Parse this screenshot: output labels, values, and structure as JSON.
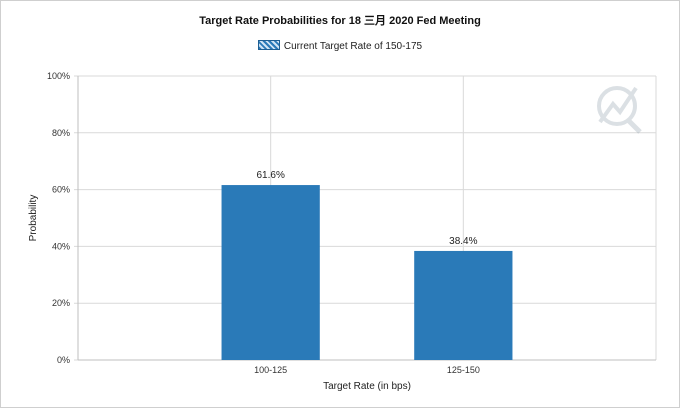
{
  "chart_data": {
    "type": "bar",
    "title": "Target Rate Probabilities for 18 三月 2020 Fed Meeting",
    "legend": [
      "Current Target Rate of 150-175"
    ],
    "legend_position": "top-center",
    "xlabel": "Target Rate (in bps)",
    "ylabel": "Probability",
    "categories": [
      "100-125",
      "125-150"
    ],
    "series": [
      {
        "name": "Current Target Rate of 150-175",
        "values": [
          61.6,
          38.4
        ]
      }
    ],
    "data_labels": [
      "61.6%",
      "38.4%"
    ],
    "ylim": [
      0,
      100
    ],
    "yticks": [
      "0%",
      "20%",
      "40%",
      "60%",
      "80%",
      "100%"
    ],
    "grid": true,
    "bar_color": "#2a7ab8"
  }
}
